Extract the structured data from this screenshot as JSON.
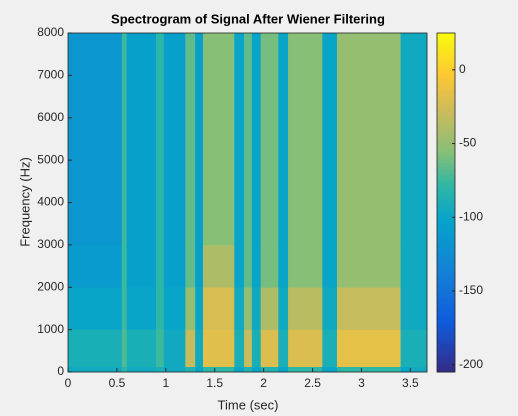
{
  "chart_data": {
    "type": "heatmap",
    "title": "Spectrogram of Signal After Wiener Filtering",
    "x_label": "Time (sec)",
    "y_label": "Frequency (Hz)",
    "colormap": "parula",
    "x_bins": [
      0,
      0.55,
      0.6,
      0.9,
      0.98,
      1.2,
      1.3,
      1.38,
      1.7,
      1.8,
      1.88,
      1.97,
      2.15,
      2.25,
      2.6,
      2.75,
      3.4,
      3.5,
      3.67
    ],
    "y_bins": [
      0,
      125,
      1000,
      2000,
      3000,
      8000
    ],
    "values": [
      [
        -95,
        -90,
        -100,
        -110,
        -115
      ],
      [
        -80,
        -70,
        -75,
        -75,
        -75
      ],
      [
        -95,
        -90,
        -100,
        -105,
        -105
      ],
      [
        -90,
        -75,
        -80,
        -80,
        -80
      ],
      [
        -95,
        -95,
        -100,
        -105,
        -105
      ],
      [
        -85,
        -30,
        -50,
        -65,
        -65
      ],
      [
        -100,
        -95,
        -100,
        -105,
        -105
      ],
      [
        -80,
        -18,
        -22,
        -40,
        -55
      ],
      [
        -100,
        -90,
        -95,
        -100,
        -100
      ],
      [
        -85,
        -30,
        -50,
        -65,
        -65
      ],
      [
        -100,
        -90,
        -95,
        -100,
        -100
      ],
      [
        -85,
        -20,
        -40,
        -60,
        -60
      ],
      [
        -100,
        -90,
        -95,
        -100,
        -100
      ],
      [
        -80,
        -20,
        -35,
        -55,
        -55
      ],
      [
        -100,
        -90,
        -95,
        -100,
        -100
      ],
      [
        -80,
        -15,
        -30,
        -50,
        -50
      ],
      [
        -100,
        -90,
        -95,
        -95,
        -95
      ],
      [
        -95,
        -90,
        -95,
        -95,
        -95
      ]
    ],
    "xlim": [
      0,
      3.67
    ],
    "ylim": [
      0,
      8000
    ],
    "clim": [
      -205,
      25
    ],
    "xticks": [
      0,
      0.5,
      1,
      1.5,
      2,
      2.5,
      3,
      3.5
    ],
    "yticks": [
      0,
      1000,
      2000,
      3000,
      4000,
      5000,
      6000,
      7000,
      8000
    ],
    "cticks": [
      0,
      -50,
      -100,
      -150,
      -200
    ]
  }
}
